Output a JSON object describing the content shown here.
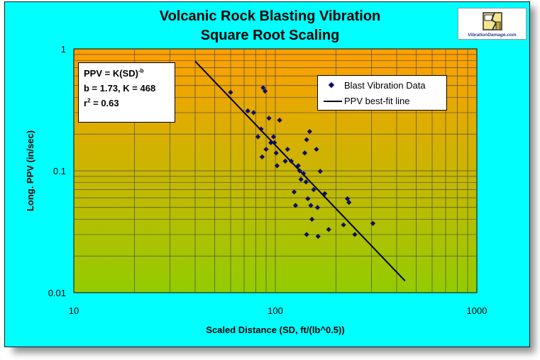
{
  "chart_data": {
    "type": "scatter",
    "title": "Volcanic Rock Blasting Vibration",
    "subtitle": "Square Root Scaling",
    "xlabel": "Scaled Distance (SD, ft/(lb^0.5))",
    "ylabel": "Long. PPV (in/sec)",
    "x_scale": "log",
    "y_scale": "log",
    "xlim": [
      10,
      1000
    ],
    "ylim": [
      0.01,
      1
    ],
    "x_ticks": [
      "10",
      "100",
      "1000"
    ],
    "y_ticks": [
      "1",
      "0.1",
      "0.01"
    ],
    "grid": true,
    "legend_position": "top-right",
    "background": {
      "top": "#ff9f00",
      "bottom": "#93cc00",
      "page": "#00ffff"
    },
    "series": [
      {
        "name": "Blast Vibration Data",
        "marker": "diamond",
        "color": "#0d0d6b",
        "points": [
          [
            60,
            0.44
          ],
          [
            73,
            0.31
          ],
          [
            78,
            0.3
          ],
          [
            82,
            0.19
          ],
          [
            87,
            0.48
          ],
          [
            85,
            0.22
          ],
          [
            89,
            0.45
          ],
          [
            86,
            0.13
          ],
          [
            90,
            0.15
          ],
          [
            93,
            0.27
          ],
          [
            95,
            0.17
          ],
          [
            98,
            0.19
          ],
          [
            99,
            0.17
          ],
          [
            101,
            0.14
          ],
          [
            102,
            0.11
          ],
          [
            105,
            0.26
          ],
          [
            112,
            0.12
          ],
          [
            115,
            0.15
          ],
          [
            120,
            0.12
          ],
          [
            124,
            0.067
          ],
          [
            126,
            0.052
          ],
          [
            130,
            0.11
          ],
          [
            132,
            0.1
          ],
          [
            134,
            0.085
          ],
          [
            138,
            0.095
          ],
          [
            140,
            0.14
          ],
          [
            143,
            0.18
          ],
          [
            142,
            0.081
          ],
          [
            145,
            0.059
          ],
          [
            143,
            0.03
          ],
          [
            148,
            0.21
          ],
          [
            150,
            0.052
          ],
          [
            152,
            0.04
          ],
          [
            155,
            0.07
          ],
          [
            160,
            0.15
          ],
          [
            162,
            0.05
          ],
          [
            163,
            0.029
          ],
          [
            167,
            0.099
          ],
          [
            176,
            0.065
          ],
          [
            184,
            0.033
          ],
          [
            218,
            0.036
          ],
          [
            228,
            0.059
          ],
          [
            232,
            0.055
          ],
          [
            248,
            0.03
          ],
          [
            305,
            0.037
          ]
        ]
      },
      {
        "name": "PPV best-fit line",
        "type": "line",
        "color": "#000000",
        "x": [
          40,
          440
        ]
      }
    ],
    "fit": {
      "b": 1.73,
      "K": 468
    }
  },
  "annotation": {
    "line1_prefix": "PPV = K(SD)",
    "line1_sup": "-b",
    "line2": "b = 1.73, K = 468",
    "line3_prefix": "r",
    "line3_sup": "2",
    "line3_suffix": " = 0.63"
  },
  "logo": {
    "text": "VibrationDamage.com",
    "icon": "house-crack-icon"
  }
}
